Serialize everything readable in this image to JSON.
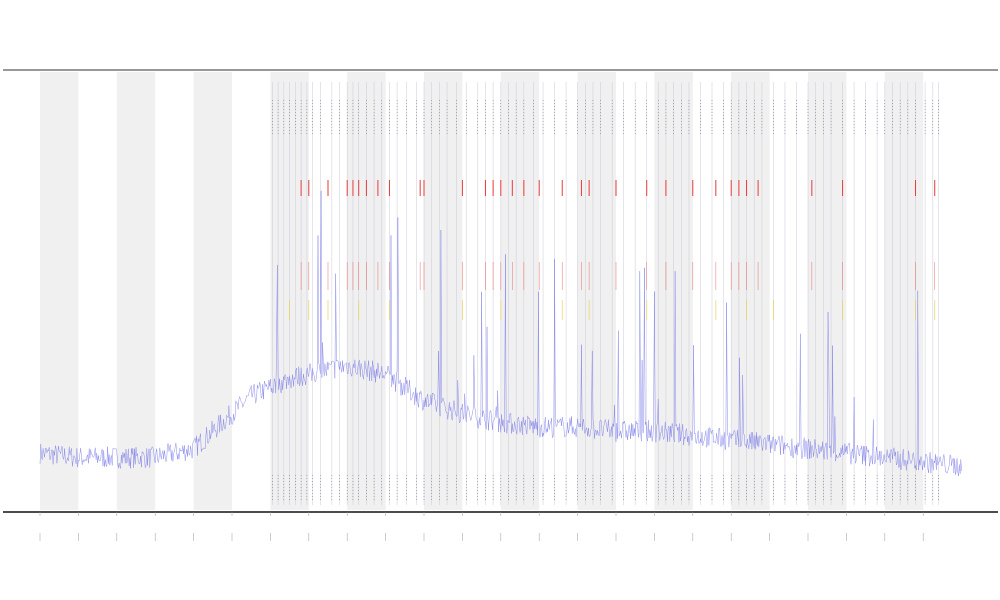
{
  "chart_data": {
    "type": "line",
    "title": "",
    "xlabel": "",
    "ylabel": "",
    "xlim": [
      -1,
      25.5
    ],
    "ylim": [
      0,
      1
    ],
    "grid": false,
    "legend": "none",
    "colors": {
      "series": "#6f6fe8",
      "band": "#f0f0f0",
      "event": "#c8c8d8",
      "event_top": "#222222",
      "red": "#e83a3a",
      "yellow": "#e8d24a",
      "axis": "#111111",
      "frame_top": "#777777"
    },
    "shaded_bands": [
      [
        0,
        1
      ],
      [
        2,
        3
      ],
      [
        4,
        5
      ],
      [
        6,
        7
      ],
      [
        8,
        9
      ],
      [
        10,
        11
      ],
      [
        12,
        13
      ],
      [
        14,
        15
      ],
      [
        16,
        17
      ],
      [
        18,
        19
      ],
      [
        20,
        21
      ],
      [
        22,
        23
      ]
    ],
    "x_ticks": [
      0,
      1,
      2,
      3,
      4,
      5,
      6,
      7,
      8,
      9,
      10,
      11,
      12,
      13,
      14,
      15,
      16,
      17,
      18,
      19,
      20,
      21,
      22,
      23
    ],
    "series": [
      {
        "x": [
          0,
          1,
          2,
          3,
          4,
          5,
          5.5,
          6,
          6.5,
          7,
          7.5,
          8,
          8.5,
          9,
          10,
          11,
          12,
          13,
          14,
          15,
          16,
          17,
          18,
          19,
          20,
          21,
          22,
          23,
          24
        ],
        "values": [
          0.13,
          0.12,
          0.12,
          0.12,
          0.14,
          0.22,
          0.26,
          0.28,
          0.3,
          0.31,
          0.32,
          0.33,
          0.32,
          0.31,
          0.25,
          0.22,
          0.2,
          0.19,
          0.19,
          0.18,
          0.18,
          0.17,
          0.16,
          0.15,
          0.14,
          0.13,
          0.12,
          0.11,
          0.1
        ]
      }
    ],
    "events": [
      6.05,
      6.2,
      6.35,
      6.5,
      6.65,
      6.8,
      6.95,
      7.1,
      7.3,
      7.6,
      7.8,
      8.0,
      8.15,
      8.3,
      8.5,
      8.7,
      8.9,
      9.1,
      9.3,
      9.55,
      9.8,
      10.0,
      10.2,
      10.4,
      10.6,
      10.85,
      11.1,
      11.4,
      11.6,
      11.8,
      12.0,
      12.2,
      12.4,
      12.6,
      12.85,
      13.1,
      13.4,
      13.7,
      14.0,
      14.2,
      14.4,
      14.6,
      14.9,
      15.2,
      15.5,
      15.8,
      16.1,
      16.3,
      16.5,
      16.7,
      16.9,
      17.2,
      17.5,
      17.8,
      18.0,
      18.2,
      18.4,
      18.6,
      18.8,
      19.1,
      19.4,
      19.7,
      20.0,
      20.2,
      20.4,
      20.6,
      20.9,
      21.2,
      21.5,
      21.8,
      22.0,
      22.2,
      22.4,
      22.6,
      22.8,
      23.05,
      23.25,
      23.4
    ],
    "red_events": [
      6.8,
      7.0,
      7.5,
      8.0,
      8.15,
      8.3,
      8.5,
      8.8,
      9.1,
      9.9,
      10.0,
      11.0,
      11.6,
      11.8,
      12.0,
      12.3,
      12.6,
      13.0,
      13.6,
      14.1,
      14.3,
      15.0,
      15.8,
      16.3,
      17.0,
      17.6,
      18.0,
      18.2,
      18.4,
      18.7,
      20.1,
      20.9,
      22.8,
      23.3
    ],
    "yellow_events": [
      6.5,
      7.0,
      7.5,
      8.3,
      9.1,
      11.0,
      12.0,
      13.6,
      14.3,
      15.8,
      17.6,
      18.4,
      19.1,
      20.9,
      22.8,
      23.3
    ]
  }
}
